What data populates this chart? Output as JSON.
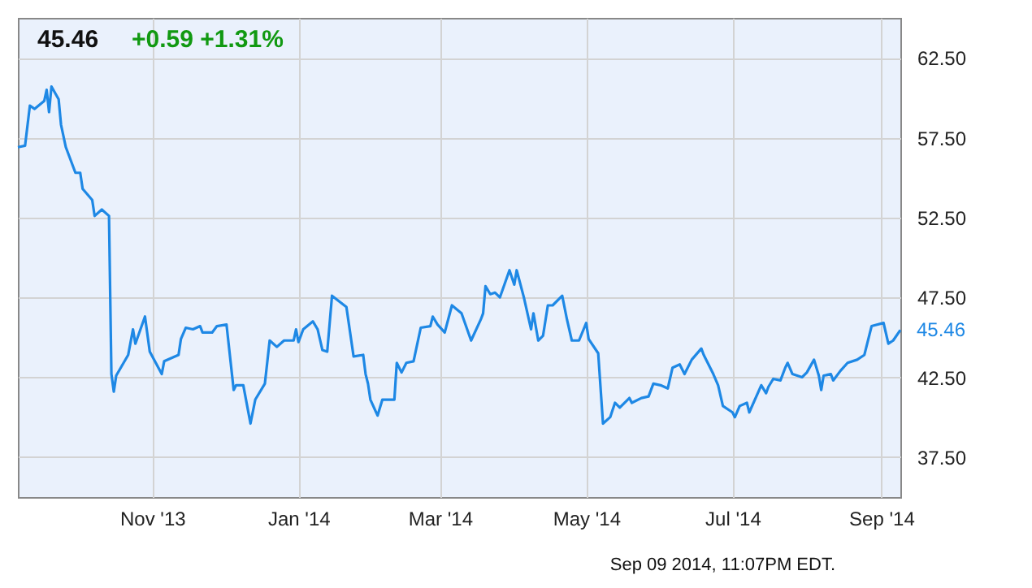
{
  "chart_data": {
    "type": "line",
    "title": "45.46",
    "subtitle": "+0.59 +1.31%",
    "x": [
      "2013-09-06",
      "2013-09-09",
      "2013-09-11",
      "2013-09-13",
      "2013-09-17",
      "2013-09-18",
      "2013-09-19",
      "2013-09-20",
      "2013-09-23",
      "2013-09-24",
      "2013-09-26",
      "2013-09-30",
      "2013-10-02",
      "2013-10-03",
      "2013-10-07",
      "2013-10-08",
      "2013-10-11",
      "2013-10-14",
      "2013-10-15",
      "2013-10-16",
      "2013-10-17",
      "2013-10-22",
      "2013-10-24",
      "2013-10-25",
      "2013-10-29",
      "2013-10-31",
      "2013-11-05",
      "2013-11-06",
      "2013-11-12",
      "2013-11-13",
      "2013-11-15",
      "2013-11-18",
      "2013-11-21",
      "2013-11-22",
      "2013-11-26",
      "2013-11-28",
      "2013-12-02",
      "2013-12-05",
      "2013-12-06",
      "2013-12-09",
      "2013-12-12",
      "2013-12-14",
      "2013-12-18",
      "2013-12-20",
      "2013-12-23",
      "2013-12-26",
      "2013-12-30",
      "2013-12-31",
      "2014-01-01",
      "2014-01-03",
      "2014-01-07",
      "2014-01-09",
      "2014-01-11",
      "2014-01-13",
      "2014-01-15",
      "2014-01-21",
      "2014-01-24",
      "2014-01-28",
      "2014-01-29",
      "2014-01-30",
      "2014-01-31",
      "2014-02-03",
      "2014-02-05",
      "2014-02-10",
      "2014-02-11",
      "2014-02-13",
      "2014-02-15",
      "2014-02-18",
      "2014-02-21",
      "2014-02-25",
      "2014-02-26",
      "2014-02-28",
      "2014-03-03",
      "2014-03-06",
      "2014-03-10",
      "2014-03-14",
      "2014-03-18",
      "2014-03-19",
      "2014-03-20",
      "2014-03-22",
      "2014-03-24",
      "2014-03-26",
      "2014-03-30",
      "2014-04-01",
      "2014-04-02",
      "2014-04-05",
      "2014-04-08",
      "2014-04-09",
      "2014-04-11",
      "2014-04-13",
      "2014-04-15",
      "2014-04-17",
      "2014-04-21",
      "2014-04-23",
      "2014-04-25",
      "2014-04-28",
      "2014-05-01",
      "2014-05-02",
      "2014-05-06",
      "2014-05-08",
      "2014-05-11",
      "2014-05-13",
      "2014-05-15",
      "2014-05-19",
      "2014-05-20",
      "2014-05-24",
      "2014-05-27",
      "2014-05-29",
      "2014-06-01",
      "2014-06-04",
      "2014-06-06",
      "2014-06-09",
      "2014-06-11",
      "2014-06-14",
      "2014-06-18",
      "2014-06-19",
      "2014-06-23",
      "2014-06-25",
      "2014-06-27",
      "2014-07-01",
      "2014-07-02",
      "2014-07-04",
      "2014-07-07",
      "2014-07-08",
      "2014-07-13",
      "2014-07-15",
      "2014-07-16",
      "2014-07-18",
      "2014-07-21",
      "2014-07-23",
      "2014-07-24",
      "2014-07-26",
      "2014-07-30",
      "2014-08-01",
      "2014-08-04",
      "2014-08-06",
      "2014-08-07",
      "2014-08-08",
      "2014-08-11",
      "2014-08-12",
      "2014-08-15",
      "2014-08-18",
      "2014-08-22",
      "2014-08-25",
      "2014-08-28",
      "2014-09-02",
      "2014-09-04",
      "2014-09-06",
      "2014-09-09"
    ],
    "series": [
      {
        "color": "#1e88e5",
        "values": [
          56.9,
          57.0,
          59.5,
          59.3,
          59.8,
          60.5,
          59.1,
          60.7,
          59.9,
          58.3,
          56.9,
          55.3,
          55.3,
          54.3,
          53.6,
          52.6,
          53.0,
          52.6,
          42.7,
          41.6,
          42.6,
          43.9,
          45.5,
          44.6,
          46.3,
          44.1,
          42.7,
          43.5,
          43.9,
          44.9,
          45.6,
          45.5,
          45.7,
          45.3,
          45.3,
          45.7,
          45.8,
          41.7,
          42.0,
          42.0,
          39.6,
          41.1,
          42.1,
          44.8,
          44.4,
          44.8,
          44.8,
          45.5,
          44.7,
          45.5,
          46.0,
          45.5,
          44.2,
          44.1,
          47.6,
          46.9,
          43.8,
          43.9,
          42.7,
          42.1,
          41.1,
          40.1,
          41.1,
          41.1,
          43.4,
          42.8,
          43.4,
          43.5,
          45.6,
          45.7,
          46.3,
          45.8,
          45.3,
          47.0,
          46.5,
          44.8,
          46.1,
          46.5,
          48.2,
          47.7,
          47.8,
          47.5,
          49.2,
          48.3,
          49.2,
          47.5,
          45.5,
          46.5,
          44.8,
          45.1,
          47.0,
          47.0,
          47.6,
          46.1,
          44.8,
          44.8,
          45.9,
          44.9,
          44.0,
          39.6,
          40.0,
          40.9,
          40.6,
          41.2,
          40.9,
          41.2,
          41.3,
          42.1,
          42.0,
          41.8,
          43.1,
          43.3,
          42.7,
          43.6,
          44.3,
          43.9,
          42.7,
          42.0,
          40.7,
          40.3,
          40.0,
          40.7,
          40.9,
          40.3,
          42.0,
          41.5,
          41.9,
          42.4,
          42.3,
          43.1,
          43.4,
          42.7,
          42.5,
          42.8,
          43.6,
          42.6,
          41.7,
          42.6,
          42.7,
          42.3,
          42.9,
          43.4,
          43.6,
          43.9,
          45.7,
          45.9,
          44.6,
          44.8,
          45.46
        ]
      }
    ],
    "xlim": [
      "2013-09-06",
      "2014-09-09"
    ],
    "xticks": [
      {
        "value": "2013-11-01",
        "label": "Nov '13"
      },
      {
        "value": "2014-01-01",
        "label": "Jan '14"
      },
      {
        "value": "2014-03-01",
        "label": "Mar '14"
      },
      {
        "value": "2014-05-01",
        "label": "May '14"
      },
      {
        "value": "2014-07-01",
        "label": "Jul '14"
      },
      {
        "value": "2014-09-01",
        "label": "Sep '14"
      }
    ],
    "ylim": [
      35,
      65
    ],
    "yticks": [
      {
        "value": 37.5,
        "label": "37.50"
      },
      {
        "value": 42.5,
        "label": "42.50"
      },
      {
        "value": 47.5,
        "label": "47.50"
      },
      {
        "value": 52.5,
        "label": "52.50"
      },
      {
        "value": 57.5,
        "label": "57.50"
      },
      {
        "value": 62.5,
        "label": "62.50"
      }
    ],
    "grid": true,
    "annotations": [
      {
        "text": "45.46",
        "x": "2014-09-09",
        "y": 45.46
      },
      "Sep 09 2014, 11:07PM EDT."
    ]
  }
}
